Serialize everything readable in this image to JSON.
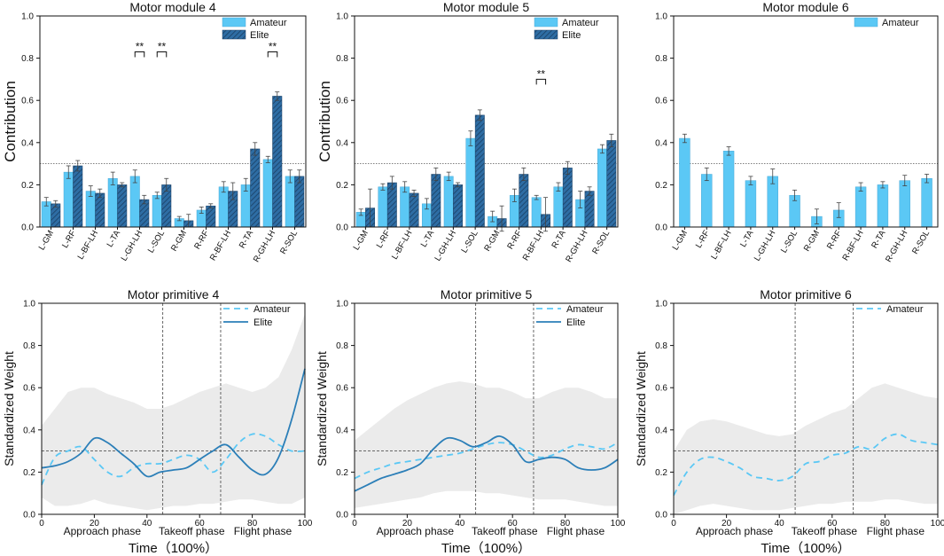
{
  "colors": {
    "amateur": "#5BC8F5",
    "elite": "#2E6DA4",
    "elite_line": "#2C7FB8",
    "band": "#e9e9e9",
    "ref": "#555555"
  },
  "legend": {
    "amateur": "Amateur",
    "elite": "Elite"
  },
  "chart_data": [
    {
      "type": "bar",
      "title": "Motor module 4",
      "ylabel": "Contribution",
      "ylim": [
        0,
        1.0
      ],
      "yticks": [
        "0.0",
        "0.2",
        "0.4",
        "0.6",
        "0.8",
        "1.0"
      ],
      "ref_line": 0.3,
      "categories": [
        "L-GM",
        "L-RF",
        "L-BF-LH",
        "L-TA",
        "L-GH-LH",
        "L-SOL",
        "R-GM",
        "R-RF",
        "R-BF-LH",
        "R-TA",
        "R-GH-LH",
        "R-SOL"
      ],
      "series": [
        {
          "name": "Amateur",
          "values": [
            0.12,
            0.26,
            0.17,
            0.23,
            0.24,
            0.15,
            0.04,
            0.08,
            0.19,
            0.2,
            0.32,
            0.24
          ],
          "errors": [
            0.02,
            0.03,
            0.025,
            0.03,
            0.03,
            0.015,
            0.01,
            0.015,
            0.025,
            0.03,
            0.015,
            0.03
          ]
        },
        {
          "name": "Elite",
          "values": [
            0.11,
            0.29,
            0.16,
            0.2,
            0.13,
            0.2,
            0.03,
            0.1,
            0.17,
            0.37,
            0.62,
            0.24
          ],
          "errors": [
            0.015,
            0.025,
            0.02,
            0.01,
            0.02,
            0.03,
            0.03,
            0.01,
            0.04,
            0.03,
            0.02,
            0.03
          ]
        }
      ],
      "significance": [
        {
          "index": 4,
          "label": "**",
          "y": 0.83
        },
        {
          "index": 5,
          "label": "**",
          "y": 0.83
        },
        {
          "index": 10,
          "label": "**",
          "y": 0.83
        }
      ]
    },
    {
      "type": "bar",
      "title": "Motor module 5",
      "ylabel": "Contribution",
      "ylim": [
        0,
        1.0
      ],
      "yticks": [
        "0.0",
        "0.2",
        "0.4",
        "0.6",
        "0.8",
        "1.0"
      ],
      "ref_line": 0.3,
      "categories": [
        "L-GM",
        "L-RF",
        "L-BF-LH",
        "L-TA",
        "L-GH-LH",
        "L-SOL",
        "R-GM",
        "R-RF",
        "R-BF-LH",
        "R-TA",
        "R-GH-LH",
        "R-SOL"
      ],
      "series": [
        {
          "name": "Amateur",
          "values": [
            0.07,
            0.19,
            0.19,
            0.11,
            0.24,
            0.42,
            0.05,
            0.15,
            0.14,
            0.19,
            0.13,
            0.37
          ],
          "errors": [
            0.015,
            0.015,
            0.025,
            0.025,
            0.02,
            0.035,
            0.025,
            0.03,
            0.01,
            0.02,
            0.04,
            0.02
          ]
        },
        {
          "name": "Elite",
          "values": [
            0.09,
            0.21,
            0.16,
            0.25,
            0.2,
            0.53,
            0.04,
            0.25,
            0.06,
            0.28,
            0.17,
            0.41
          ],
          "errors": [
            0.09,
            0.03,
            0.015,
            0.03,
            0.01,
            0.025,
            0.06,
            0.03,
            0.08,
            0.03,
            0.02,
            0.03
          ]
        }
      ],
      "significance": [
        {
          "index": 8,
          "label": "**",
          "y": 0.7
        }
      ]
    },
    {
      "type": "bar",
      "title": "Motor module 6",
      "ylabel": "",
      "ylim": [
        0,
        1.0
      ],
      "yticks": [
        "0.0",
        "0.2",
        "0.4",
        "0.6",
        "0.8",
        "1.0"
      ],
      "ref_line": 0.3,
      "categories": [
        "L-GM",
        "L-RF",
        "L-BF-LH",
        "L-TA",
        "L-GH-LH",
        "L-SOL",
        "R-GM",
        "R-RF",
        "R-BF-LH",
        "R-TA",
        "R-GH-LH",
        "R-SOL"
      ],
      "series": [
        {
          "name": "Amateur",
          "values": [
            0.42,
            0.25,
            0.36,
            0.22,
            0.24,
            0.15,
            0.05,
            0.08,
            0.19,
            0.2,
            0.22,
            0.23
          ],
          "errors": [
            0.02,
            0.03,
            0.02,
            0.02,
            0.035,
            0.025,
            0.035,
            0.035,
            0.02,
            0.015,
            0.025,
            0.02
          ]
        }
      ],
      "significance": []
    },
    {
      "type": "line",
      "title": "Motor primitive 4",
      "ylabel": "Standardized Weight",
      "xlabel": "Time（100%）",
      "ylim": [
        0,
        1.0
      ],
      "xlim": [
        0,
        100
      ],
      "yticks": [
        "0.0",
        "0.2",
        "0.4",
        "0.6",
        "0.8",
        "1.0"
      ],
      "xticks": [
        "0",
        "20",
        "40",
        "60",
        "80",
        "100"
      ],
      "phase_lines": [
        46,
        68
      ],
      "phases": [
        "Approach phase",
        "Takeoff phase",
        "Flight phase"
      ],
      "ref_line": 0.3,
      "x": [
        0,
        5,
        10,
        15,
        20,
        25,
        30,
        35,
        40,
        45,
        50,
        55,
        60,
        65,
        70,
        75,
        80,
        85,
        90,
        95,
        100
      ],
      "series": [
        {
          "name": "Amateur",
          "style": "dashed",
          "values": [
            0.14,
            0.27,
            0.3,
            0.32,
            0.26,
            0.2,
            0.18,
            0.22,
            0.24,
            0.24,
            0.26,
            0.28,
            0.26,
            0.2,
            0.26,
            0.34,
            0.38,
            0.37,
            0.33,
            0.3,
            0.3
          ]
        },
        {
          "name": "Elite",
          "style": "solid",
          "values": [
            0.22,
            0.23,
            0.25,
            0.29,
            0.36,
            0.34,
            0.29,
            0.24,
            0.18,
            0.2,
            0.21,
            0.22,
            0.26,
            0.3,
            0.33,
            0.27,
            0.21,
            0.19,
            0.27,
            0.45,
            0.69
          ]
        }
      ],
      "band_upper": [
        0.42,
        0.5,
        0.58,
        0.6,
        0.6,
        0.57,
        0.55,
        0.53,
        0.5,
        0.5,
        0.52,
        0.55,
        0.58,
        0.6,
        0.62,
        0.6,
        0.58,
        0.6,
        0.65,
        0.78,
        0.95
      ],
      "band_lower": [
        0.08,
        0.04,
        0.04,
        0.05,
        0.07,
        0.05,
        0.04,
        0.03,
        0.02,
        0.03,
        0.04,
        0.04,
        0.05,
        0.05,
        0.06,
        0.07,
        0.07,
        0.06,
        0.05,
        0.05,
        0.08
      ]
    },
    {
      "type": "line",
      "title": "Motor primitive 5",
      "ylabel": "Standardized Weight",
      "xlabel": "Time（100%）",
      "ylim": [
        0,
        1.0
      ],
      "xlim": [
        0,
        100
      ],
      "yticks": [
        "0.0",
        "0.2",
        "0.4",
        "0.6",
        "0.8",
        "1.0"
      ],
      "xticks": [
        "0",
        "20",
        "40",
        "60",
        "80",
        "100"
      ],
      "phase_lines": [
        46,
        68
      ],
      "phases": [
        "Approach phase",
        "Takeoff phase",
        "Flight phase"
      ],
      "ref_line": 0.3,
      "x": [
        0,
        5,
        10,
        15,
        20,
        25,
        30,
        35,
        40,
        45,
        50,
        55,
        60,
        65,
        70,
        75,
        80,
        85,
        90,
        95,
        100
      ],
      "series": [
        {
          "name": "Amateur",
          "style": "dashed",
          "values": [
            0.17,
            0.2,
            0.22,
            0.24,
            0.25,
            0.26,
            0.27,
            0.28,
            0.29,
            0.31,
            0.33,
            0.34,
            0.33,
            0.3,
            0.27,
            0.28,
            0.31,
            0.33,
            0.32,
            0.31,
            0.34
          ]
        },
        {
          "name": "Elite",
          "style": "solid",
          "values": [
            0.11,
            0.14,
            0.17,
            0.19,
            0.21,
            0.24,
            0.31,
            0.36,
            0.35,
            0.32,
            0.34,
            0.37,
            0.33,
            0.25,
            0.26,
            0.27,
            0.26,
            0.22,
            0.21,
            0.22,
            0.26
          ]
        }
      ],
      "band_upper": [
        0.35,
        0.4,
        0.45,
        0.5,
        0.54,
        0.57,
        0.6,
        0.62,
        0.63,
        0.62,
        0.6,
        0.6,
        0.58,
        0.55,
        0.55,
        0.58,
        0.6,
        0.6,
        0.58,
        0.55,
        0.55
      ],
      "band_lower": [
        0.03,
        0.04,
        0.05,
        0.06,
        0.07,
        0.08,
        0.1,
        0.11,
        0.11,
        0.11,
        0.1,
        0.1,
        0.09,
        0.08,
        0.07,
        0.07,
        0.07,
        0.06,
        0.05,
        0.04,
        0.04
      ]
    },
    {
      "type": "line",
      "title": "Motor primitive 6",
      "ylabel": "Standardized Weight",
      "xlabel": "Time（100%）",
      "ylim": [
        0,
        1.0
      ],
      "xlim": [
        0,
        100
      ],
      "yticks": [
        "0.0",
        "0.2",
        "0.4",
        "0.6",
        "0.8",
        "1.0"
      ],
      "xticks": [
        "0",
        "20",
        "40",
        "60",
        "80",
        "100"
      ],
      "phase_lines": [
        46,
        68
      ],
      "phases": [
        "Approach phase",
        "Takeoff phase",
        "Flight phase"
      ],
      "ref_line": 0.3,
      "x": [
        0,
        5,
        10,
        15,
        20,
        25,
        30,
        35,
        40,
        45,
        50,
        55,
        60,
        65,
        70,
        75,
        80,
        85,
        90,
        95,
        100
      ],
      "series": [
        {
          "name": "Amateur",
          "style": "dashed",
          "values": [
            0.09,
            0.2,
            0.26,
            0.27,
            0.25,
            0.22,
            0.18,
            0.17,
            0.16,
            0.18,
            0.24,
            0.25,
            0.28,
            0.29,
            0.32,
            0.31,
            0.36,
            0.38,
            0.35,
            0.34,
            0.33
          ]
        }
      ],
      "band_upper": [
        0.3,
        0.4,
        0.44,
        0.45,
        0.44,
        0.42,
        0.4,
        0.38,
        0.37,
        0.38,
        0.42,
        0.45,
        0.48,
        0.5,
        0.55,
        0.6,
        0.62,
        0.6,
        0.58,
        0.56,
        0.55
      ],
      "band_lower": [
        0.0,
        0.02,
        0.04,
        0.05,
        0.04,
        0.03,
        0.02,
        0.02,
        0.02,
        0.03,
        0.04,
        0.05,
        0.05,
        0.06,
        0.06,
        0.06,
        0.07,
        0.07,
        0.06,
        0.05,
        0.05
      ]
    }
  ]
}
